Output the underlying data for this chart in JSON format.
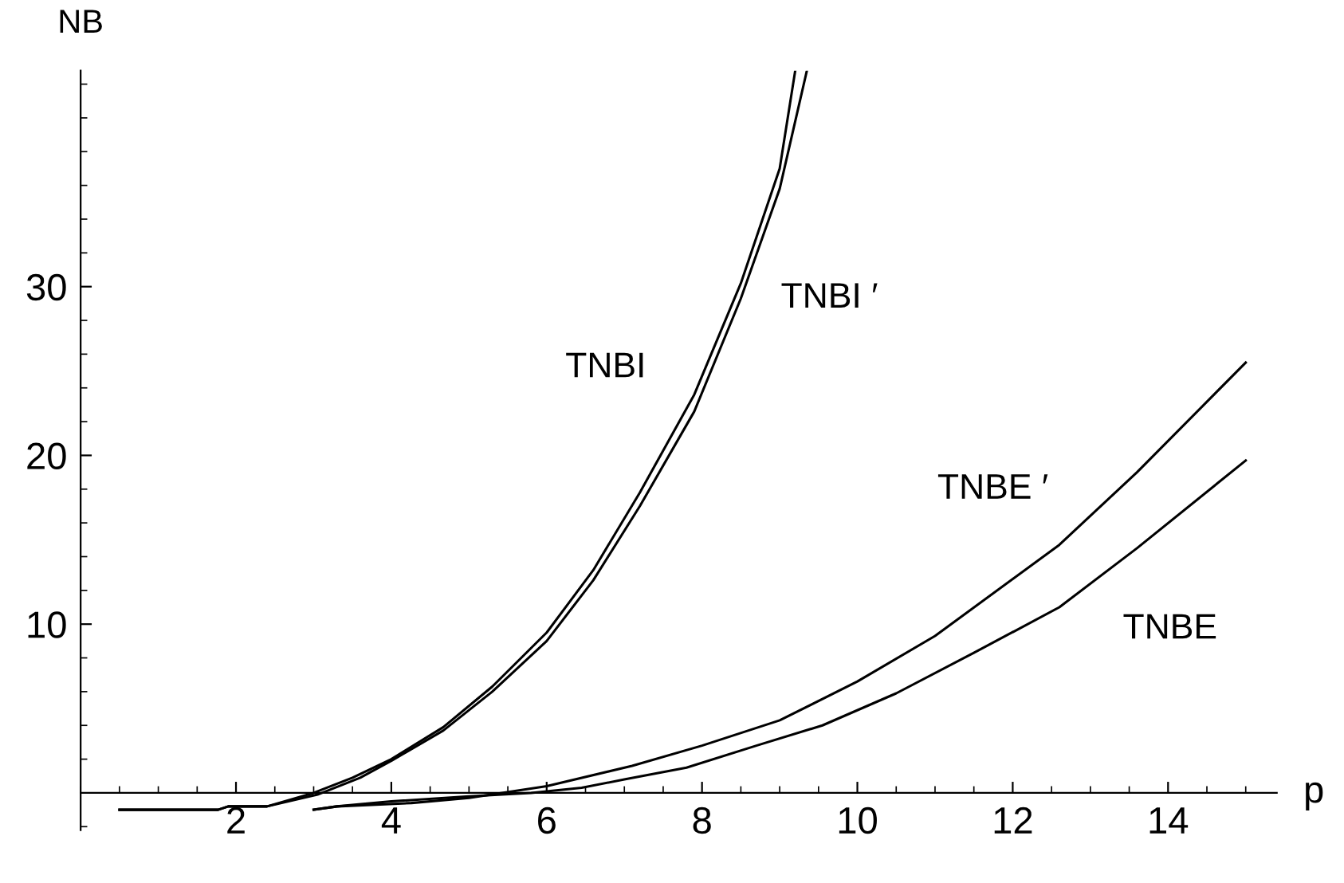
{
  "chart_data": {
    "type": "line",
    "xlabel": "p",
    "ylabel": "NB",
    "xlim": [
      0,
      15.4
    ],
    "ylim": [
      -2.2,
      42.8
    ],
    "xticks": [
      2,
      4,
      6,
      8,
      10,
      12,
      14
    ],
    "yticks": [
      10,
      20,
      30
    ],
    "grid": false,
    "marker": "none",
    "line_style": "solid",
    "series": [
      {
        "name": "TNBI",
        "color": "#000000",
        "x": [
          0.5,
          1.77,
          1.9,
          2.4,
          3.0,
          3.5,
          4.0,
          4.67,
          5.3,
          6.0,
          6.6,
          7.2,
          7.9,
          8.5,
          9.0,
          9.2
        ],
        "values": [
          -1.0,
          -1.0,
          -0.8,
          -0.8,
          0.0,
          0.9,
          2.0,
          3.9,
          6.3,
          9.5,
          13.2,
          17.8,
          23.6,
          30.2,
          37.0,
          42.8
        ]
      },
      {
        "name": "TNBI ′",
        "color": "#000000",
        "x": [
          0.5,
          1.77,
          1.9,
          2.4,
          3.05,
          3.6,
          4.0,
          4.67,
          5.3,
          6.0,
          6.6,
          7.2,
          7.9,
          8.5,
          9.0,
          9.35
        ],
        "values": [
          -1.0,
          -1.0,
          -0.8,
          -0.8,
          -0.1,
          0.9,
          1.9,
          3.7,
          6.0,
          9.0,
          12.6,
          17.0,
          22.6,
          29.3,
          35.8,
          42.8
        ]
      },
      {
        "name": "TNBE ′",
        "color": "#000000",
        "x": [
          3.0,
          3.3,
          4.26,
          5.0,
          6.0,
          7.1,
          8.0,
          9.0,
          10.0,
          11.0,
          12.6,
          13.6,
          15.0
        ],
        "values": [
          -1.0,
          -0.8,
          -0.6,
          -0.3,
          0.4,
          1.6,
          2.8,
          4.3,
          6.6,
          9.3,
          14.7,
          19.0,
          25.5
        ]
      },
      {
        "name": "TNBE",
        "color": "#000000",
        "x": [
          3.0,
          3.3,
          4.0,
          5.0,
          5.8,
          6.45,
          7.0,
          7.8,
          8.7,
          9.55,
          10.5,
          11.5,
          12.6,
          13.6,
          15.0
        ],
        "values": [
          -1.0,
          -0.8,
          -0.5,
          -0.2,
          0.0,
          0.3,
          0.8,
          1.5,
          2.8,
          4.0,
          5.9,
          8.3,
          11.0,
          14.5,
          19.7
        ]
      }
    ]
  }
}
